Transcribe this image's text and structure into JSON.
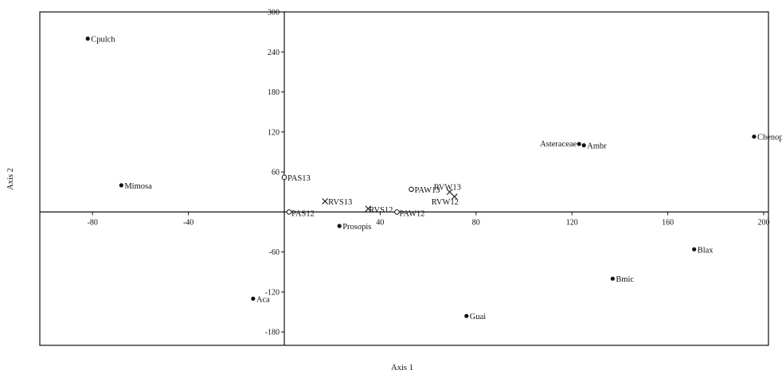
{
  "chart_data": {
    "type": "scatter",
    "title": "",
    "xlabel": "Axis 1",
    "ylabel": "Axis 2",
    "xlim": [
      -102,
      202
    ],
    "ylim": [
      -200,
      300
    ],
    "x_ticks": [
      -80,
      -40,
      40,
      80,
      120,
      160,
      200
    ],
    "y_ticks": [
      -180,
      -120,
      -60,
      60,
      120,
      180,
      240,
      300
    ],
    "grid": false,
    "legend": "none",
    "series": [
      {
        "marker": "filled-circle",
        "points": [
          {
            "label": "Cpulch",
            "x": -82,
            "y": 260
          },
          {
            "label": "Mimosa",
            "x": -68,
            "y": 40
          },
          {
            "label": "Aca",
            "x": -13,
            "y": -130
          },
          {
            "label": "Prosopis",
            "x": 23,
            "y": -21
          },
          {
            "label": "Guai",
            "x": 76,
            "y": -156
          },
          {
            "label": "Asteraceae",
            "x": 123,
            "y": 102
          },
          {
            "label": "Ambr",
            "x": 125,
            "y": 100
          },
          {
            "label": "Bmic",
            "x": 137,
            "y": -100
          },
          {
            "label": "Blax",
            "x": 171,
            "y": -56
          },
          {
            "label": "Chenop",
            "x": 196,
            "y": 113
          }
        ]
      },
      {
        "marker": "open-circle",
        "points": [
          {
            "label": "PAS13",
            "x": 0,
            "y": 52
          },
          {
            "label": "PAS12",
            "x": 2,
            "y": 0
          },
          {
            "label": "PAW13",
            "x": 53,
            "y": 34
          },
          {
            "label": "PAW12",
            "x": 47,
            "y": 0
          }
        ]
      },
      {
        "marker": "cross",
        "points": [
          {
            "label": "RVS13",
            "x": 17,
            "y": 16
          },
          {
            "label": "RVS12",
            "x": 35,
            "y": 5
          },
          {
            "label": "RVW13",
            "x": 69,
            "y": 30
          },
          {
            "label": "RVW12",
            "x": 71,
            "y": 23
          }
        ]
      }
    ]
  }
}
